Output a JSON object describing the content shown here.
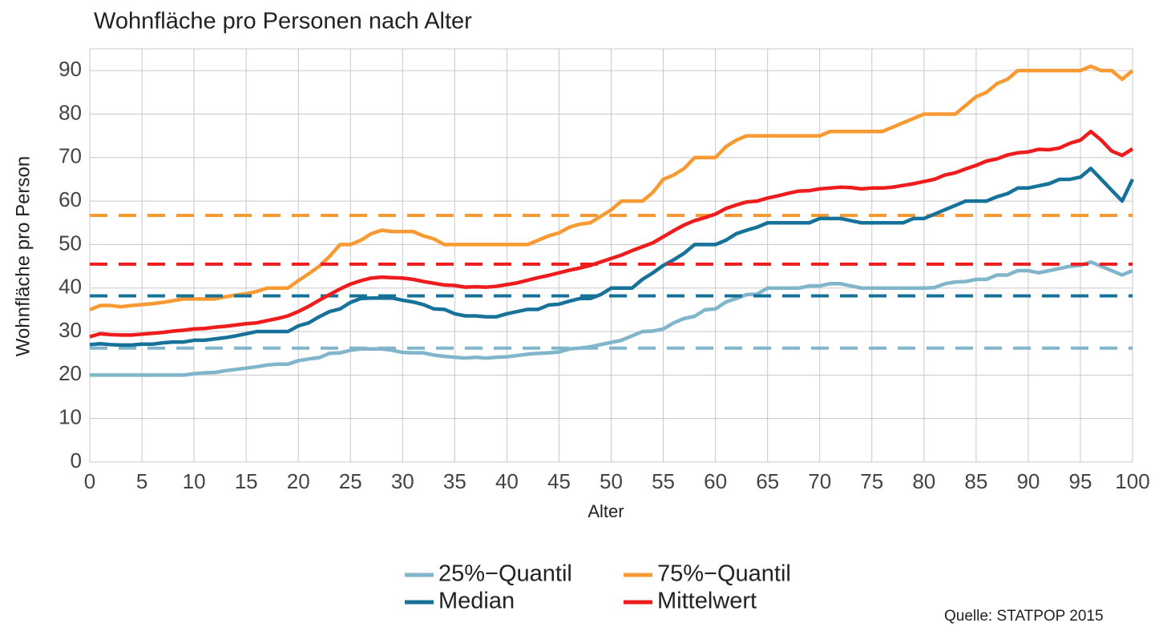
{
  "chart_data": {
    "type": "line",
    "title": "Wohnfläche pro Personen nach Alter",
    "x_label": "Alter",
    "y_label": "Wohnfläche pro Person",
    "source": "Quelle: STATPOP 2015",
    "x": [
      0,
      1,
      2,
      3,
      4,
      5,
      6,
      7,
      8,
      9,
      10,
      11,
      12,
      13,
      14,
      15,
      16,
      17,
      18,
      19,
      20,
      21,
      22,
      23,
      24,
      25,
      26,
      27,
      28,
      29,
      30,
      31,
      32,
      33,
      34,
      35,
      36,
      37,
      38,
      39,
      40,
      41,
      42,
      43,
      44,
      45,
      46,
      47,
      48,
      49,
      50,
      51,
      52,
      53,
      54,
      55,
      56,
      57,
      58,
      59,
      60,
      61,
      62,
      63,
      64,
      65,
      66,
      67,
      68,
      69,
      70,
      71,
      72,
      73,
      74,
      75,
      76,
      77,
      78,
      79,
      80,
      81,
      82,
      83,
      84,
      85,
      86,
      87,
      88,
      89,
      90,
      91,
      92,
      93,
      94,
      95,
      96,
      97,
      98,
      99,
      100
    ],
    "xlim": [
      0,
      100
    ],
    "xticks": [
      0,
      5,
      10,
      15,
      20,
      25,
      30,
      35,
      40,
      45,
      50,
      55,
      60,
      65,
      70,
      75,
      80,
      85,
      90,
      95,
      100
    ],
    "ylim": [
      0,
      95
    ],
    "yticks": [
      0,
      10,
      20,
      30,
      40,
      50,
      60,
      70,
      80,
      90
    ],
    "grid": true,
    "series": [
      {
        "name": "25%−Quantil",
        "color": "#80b5cc",
        "reference": 26.2,
        "values": [
          20,
          20,
          20,
          20,
          20,
          20,
          20,
          20,
          20,
          20,
          20.3,
          20.5,
          20.6,
          21,
          21.3,
          21.6,
          21.9,
          22.3,
          22.5,
          22.5,
          23.3,
          23.7,
          24,
          25,
          25.1,
          25.7,
          26,
          26,
          26,
          25.7,
          25.2,
          25.1,
          25.1,
          24.6,
          24.3,
          24.1,
          23.9,
          24.1,
          23.9,
          24.1,
          24.2,
          24.5,
          24.8,
          25,
          25.1,
          25.3,
          26,
          26.2,
          26.5,
          27,
          27.5,
          28,
          29,
          30,
          30.1,
          30.6,
          32,
          33,
          33.5,
          35,
          35.2,
          36.8,
          37.6,
          38.5,
          38.6,
          40,
          40,
          40,
          40,
          40.5,
          40.5,
          41,
          41,
          40.5,
          40,
          40,
          40,
          40,
          40,
          40,
          40,
          40.1,
          41,
          41.4,
          41.5,
          42,
          42,
          43,
          43,
          44,
          44,
          43.5,
          44,
          44.5,
          45,
          45.2,
          46,
          45,
          44,
          43,
          44
        ]
      },
      {
        "name": "75%−Quantil",
        "color": "#f89a33",
        "reference": 56.7,
        "values": [
          35,
          36,
          36,
          35.7,
          36,
          36.2,
          36.4,
          36.7,
          37.1,
          37.5,
          37.5,
          37.5,
          37.5,
          38,
          38.4,
          38.7,
          39.2,
          40,
          40,
          40,
          41.7,
          43.3,
          45,
          47.3,
          50,
          50,
          51,
          52.5,
          53.3,
          53,
          53,
          53,
          52,
          51.3,
          50,
          50,
          50,
          50,
          50,
          50,
          50,
          50,
          50,
          51,
          52,
          52.7,
          54,
          54.7,
          55,
          56.5,
          58,
          60,
          60,
          60,
          62,
          65,
          66,
          67.5,
          70,
          70,
          70,
          72.5,
          74,
          75,
          75,
          75,
          75,
          75,
          75,
          75,
          75,
          76,
          76,
          76,
          76,
          76,
          76,
          77,
          78,
          79,
          80,
          80,
          80,
          80,
          82,
          84,
          85,
          87,
          88,
          90,
          90,
          90,
          90,
          90,
          90,
          90,
          91,
          90,
          90,
          88,
          90
        ]
      },
      {
        "name": "Median",
        "color": "#17729a",
        "reference": 38.2,
        "values": [
          27,
          27.2,
          27,
          26.9,
          26.9,
          27.1,
          27.1,
          27.4,
          27.6,
          27.6,
          28,
          28,
          28.3,
          28.6,
          29,
          29.5,
          30,
          30,
          30,
          30,
          31.3,
          32,
          33.4,
          34.6,
          35.2,
          36.7,
          37.6,
          37.7,
          37.7,
          37.7,
          37.2,
          36.8,
          36.2,
          35.2,
          35.1,
          34.1,
          33.6,
          33.6,
          33.4,
          33.4,
          34.1,
          34.6,
          35.1,
          35.1,
          36.1,
          36.3,
          37,
          37.6,
          37.6,
          38.5,
          40,
          40,
          40,
          42,
          43.5,
          45.2,
          46.5,
          48,
          50,
          50,
          50,
          51,
          52.5,
          53.3,
          54,
          55,
          55,
          55,
          55,
          55,
          56,
          56,
          56,
          55.5,
          55,
          55,
          55,
          55,
          55,
          56,
          56,
          57,
          58,
          59,
          60,
          60,
          60,
          61,
          61.7,
          63,
          63,
          63.5,
          64,
          65,
          65,
          65.5,
          67.5,
          65,
          62.5,
          60,
          65
        ]
      },
      {
        "name": "Mittelwert",
        "color": "#ee1c1c",
        "reference": 45.5,
        "values": [
          28.8,
          29.5,
          29.3,
          29.2,
          29.2,
          29.4,
          29.6,
          29.8,
          30.1,
          30.3,
          30.6,
          30.7,
          31,
          31.2,
          31.5,
          31.8,
          32,
          32.5,
          33,
          33.6,
          34.6,
          35.8,
          37.2,
          38.5,
          39.8,
          40.9,
          41.7,
          42.3,
          42.5,
          42.4,
          42.3,
          42,
          41.5,
          41.1,
          40.7,
          40.6,
          40.2,
          40.3,
          40.2,
          40.4,
          40.8,
          41.2,
          41.8,
          42.4,
          42.9,
          43.5,
          44.1,
          44.6,
          45.2,
          46,
          46.8,
          47.6,
          48.6,
          49.5,
          50.4,
          51.8,
          53.2,
          54.5,
          55.5,
          56.2,
          57,
          58.3,
          59.1,
          59.8,
          60,
          60.7,
          61.2,
          61.8,
          62.3,
          62.4,
          62.8,
          63,
          63.2,
          63.1,
          62.8,
          63,
          63,
          63.2,
          63.6,
          64,
          64.5,
          65,
          66,
          66.5,
          67.4,
          68.2,
          69.2,
          69.7,
          70.6,
          71.1,
          71.3,
          71.9,
          71.8,
          72.2,
          73.3,
          74,
          76,
          74,
          71.5,
          70.5,
          72
        ]
      }
    ]
  }
}
